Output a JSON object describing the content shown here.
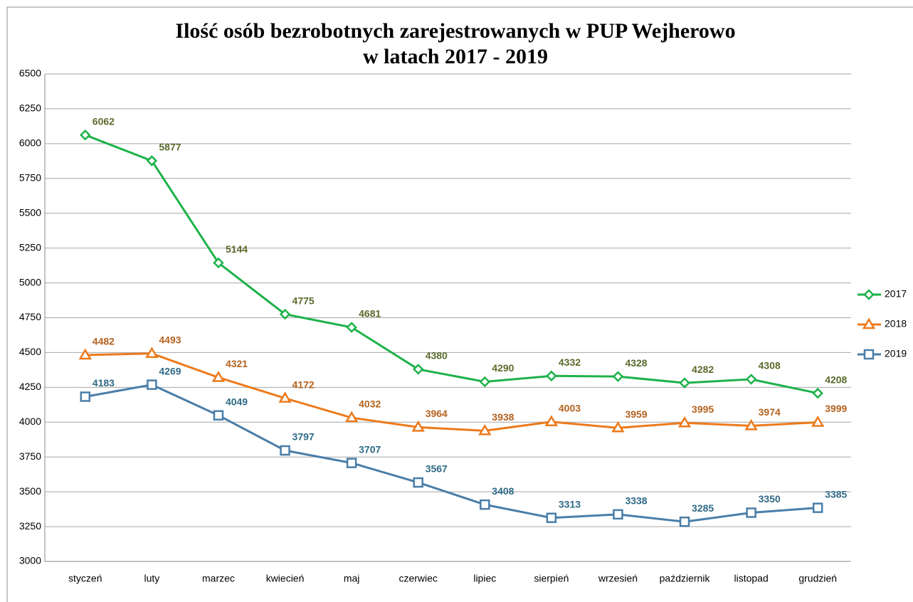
{
  "chart_data": {
    "type": "line",
    "title": [
      "Ilość osób bezrobotnych zarejestrowanych w PUP Wejherowo",
      "w latach 2017 - 2019"
    ],
    "categories": [
      "styczeń",
      "luty",
      "marzec",
      "kwiecień",
      "maj",
      "czerwiec",
      "lipiec",
      "sierpień",
      "wrzesień",
      "październik",
      "listopad",
      "grudzień"
    ],
    "series": [
      {
        "name": "2019",
        "color": "#4a7ea8",
        "label_color": "#2f6a86",
        "marker": "square",
        "values": [
          4183,
          4269,
          4049,
          3797,
          3707,
          3567,
          3408,
          3313,
          3338,
          3285,
          3350,
          3385
        ]
      },
      {
        "name": "2018",
        "color": "#ec7a1c",
        "label_color": "#b4621e",
        "marker": "triangle",
        "values": [
          4482,
          4493,
          4321,
          4172,
          4032,
          3964,
          3938,
          4003,
          3959,
          3995,
          3974,
          3999
        ]
      },
      {
        "name": "2017",
        "color": "#1db24a",
        "label_color": "#5b6a2c",
        "marker": "diamond",
        "values": [
          6062,
          5877,
          5144,
          4775,
          4681,
          4380,
          4290,
          4332,
          4328,
          4282,
          4308,
          4208
        ]
      }
    ],
    "ylim": [
      3000,
      6500
    ],
    "yticks": [
      3000,
      3250,
      3500,
      3750,
      4000,
      4250,
      4500,
      4750,
      5000,
      5250,
      5500,
      5750,
      6000,
      6250,
      6500
    ],
    "grid": true,
    "legend": "right"
  }
}
